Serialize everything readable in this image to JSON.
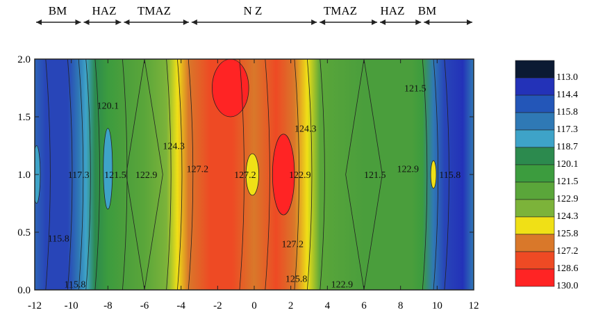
{
  "chart_data": {
    "type": "heatmap",
    "title": "",
    "xlabel": "",
    "ylabel": "",
    "xlim": [
      -12,
      12
    ],
    "ylim": [
      0.0,
      2.0
    ],
    "x_ticks": [
      "-12",
      "-10",
      "-8",
      "-6",
      "-4",
      "-2",
      "0",
      "2",
      "4",
      "6",
      "8",
      "10",
      "12"
    ],
    "y_ticks": [
      "0.0",
      "0.5",
      "1.0",
      "1.5",
      "2.0"
    ],
    "zones": [
      {
        "label": "BM",
        "x_start": -12,
        "x_end": -9.4
      },
      {
        "label": "HAZ",
        "x_start": -9.4,
        "x_end": -7.2
      },
      {
        "label": "TMAZ",
        "x_start": -7.2,
        "x_end": -3.5
      },
      {
        "label": "N Z",
        "x_start": -3.5,
        "x_end": 3.5
      },
      {
        "label": "TMAZ",
        "x_start": 3.5,
        "x_end": 6.8
      },
      {
        "label": "HAZ",
        "x_start": 6.8,
        "x_end": 9.2
      },
      {
        "label": "BM",
        "x_start": 9.2,
        "x_end": 12
      }
    ],
    "legend": {
      "levels": [
        "113.0",
        "114.4",
        "115.8",
        "117.3",
        "118.7",
        "120.1",
        "121.5",
        "122.9",
        "124.3",
        "125.8",
        "127.2",
        "128.6",
        "130.0"
      ],
      "colors": [
        "#0b1a33",
        "#2332b8",
        "#2356b8",
        "#2f79b5",
        "#3ea3c8",
        "#2c8a4e",
        "#3c9c3e",
        "#5aa63a",
        "#7cb33a",
        "#f0e016",
        "#d9782a",
        "#ee4a24",
        "#ff2424"
      ]
    },
    "column_colors": [
      {
        "x": -12,
        "color": "#2d65b8"
      },
      {
        "x": -11.4,
        "color": "#2845b8"
      },
      {
        "x": -10.2,
        "color": "#2845b8"
      },
      {
        "x": -9.6,
        "color": "#2f79b5"
      },
      {
        "x": -9.2,
        "color": "#3ea3c8"
      },
      {
        "x": -8.7,
        "color": "#2c8a4e"
      },
      {
        "x": -8.0,
        "color": "#3c9c3e"
      },
      {
        "x": -7.2,
        "color": "#4a9e3c"
      },
      {
        "x": -6.0,
        "color": "#5aa63a"
      },
      {
        "x": -4.8,
        "color": "#7cb33a"
      },
      {
        "x": -4.2,
        "color": "#f0e016"
      },
      {
        "x": -3.6,
        "color": "#d9782a"
      },
      {
        "x": -2.4,
        "color": "#ee4a24"
      },
      {
        "x": -1.2,
        "color": "#ee4a24"
      },
      {
        "x": 0.0,
        "color": "#d9782a"
      },
      {
        "x": 1.2,
        "color": "#ee4a24"
      },
      {
        "x": 2.2,
        "color": "#d9782a"
      },
      {
        "x": 2.9,
        "color": "#f0e016"
      },
      {
        "x": 3.6,
        "color": "#5aa63a"
      },
      {
        "x": 6.0,
        "color": "#4a9e3c"
      },
      {
        "x": 8.6,
        "color": "#4a9e3c"
      },
      {
        "x": 9.2,
        "color": "#3c9c3e"
      },
      {
        "x": 9.8,
        "color": "#2f79b5"
      },
      {
        "x": 10.4,
        "color": "#2845b8"
      },
      {
        "x": 11.4,
        "color": "#2332b8"
      },
      {
        "x": 12,
        "color": "#2f79b5"
      }
    ],
    "blobs": [
      {
        "x": -1.3,
        "y": 1.75,
        "rx": 1.0,
        "ry": 0.25,
        "color": "#ff2424"
      },
      {
        "x": 1.6,
        "y": 1.0,
        "rx": 0.6,
        "ry": 0.35,
        "color": "#ff2424"
      },
      {
        "x": -0.1,
        "y": 1.0,
        "rx": 0.35,
        "ry": 0.18,
        "color": "#f0e016"
      },
      {
        "x": -8.0,
        "y": 1.05,
        "rx": 0.25,
        "ry": 0.35,
        "color": "#3ea3c8"
      },
      {
        "x": -11.9,
        "y": 1.0,
        "rx": 0.2,
        "ry": 0.25,
        "color": "#3ea3c8"
      },
      {
        "x": 9.8,
        "y": 1.0,
        "rx": 0.15,
        "ry": 0.12,
        "color": "#f0e016"
      }
    ],
    "contour_labels": [
      {
        "text": "120.1",
        "x": -8.0,
        "y": 1.6
      },
      {
        "text": "117.3",
        "x": -9.6,
        "y": 1.0
      },
      {
        "text": "121.5",
        "x": -7.6,
        "y": 1.0
      },
      {
        "text": "122.9",
        "x": -5.9,
        "y": 1.0
      },
      {
        "text": "124.3",
        "x": -4.4,
        "y": 1.25
      },
      {
        "text": "127.2",
        "x": -3.1,
        "y": 1.05
      },
      {
        "text": "127.2",
        "x": -0.5,
        "y": 1.0
      },
      {
        "text": "122.9",
        "x": 2.5,
        "y": 1.0
      },
      {
        "text": "124.3",
        "x": 2.8,
        "y": 1.4
      },
      {
        "text": "127.2",
        "x": 2.1,
        "y": 0.4
      },
      {
        "text": "125.8",
        "x": 2.3,
        "y": 0.1
      },
      {
        "text": "122.9",
        "x": 4.8,
        "y": 0.05
      },
      {
        "text": "121.5",
        "x": 6.6,
        "y": 1.0
      },
      {
        "text": "122.9",
        "x": 8.4,
        "y": 1.05
      },
      {
        "text": "121.5",
        "x": 8.8,
        "y": 1.75
      },
      {
        "text": "115.8",
        "x": 10.7,
        "y": 1.0
      },
      {
        "text": "115.8",
        "x": -10.7,
        "y": 0.45
      },
      {
        "text": "115.8",
        "x": -9.8,
        "y": 0.05
      }
    ]
  }
}
